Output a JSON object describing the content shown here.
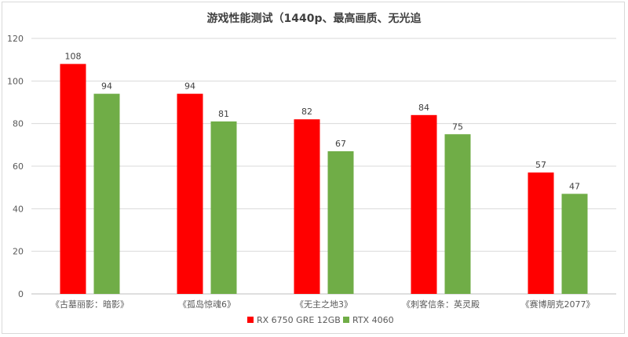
{
  "chart_data": {
    "type": "bar",
    "title": "游戏性能测试（1440p、最高画质、无光追",
    "categories": [
      "《古墓丽影：暗影》",
      "《孤岛惊魂6》",
      "《无主之地3》",
      "《刺客信条：英灵殿",
      "《赛博朋克2077》"
    ],
    "series": [
      {
        "name": "RX 6750 GRE 12GB",
        "color": "#ff0000",
        "values": [
          108,
          94,
          82,
          84,
          57
        ]
      },
      {
        "name": "RTX 4060",
        "color": "#70ad47",
        "values": [
          94,
          81,
          67,
          75,
          47
        ]
      }
    ],
    "xlabel": "",
    "ylabel": "",
    "ylim": [
      0,
      120
    ],
    "yticks": [
      0,
      20,
      40,
      60,
      80,
      100,
      120
    ],
    "grid": true,
    "legend": "bottom"
  }
}
